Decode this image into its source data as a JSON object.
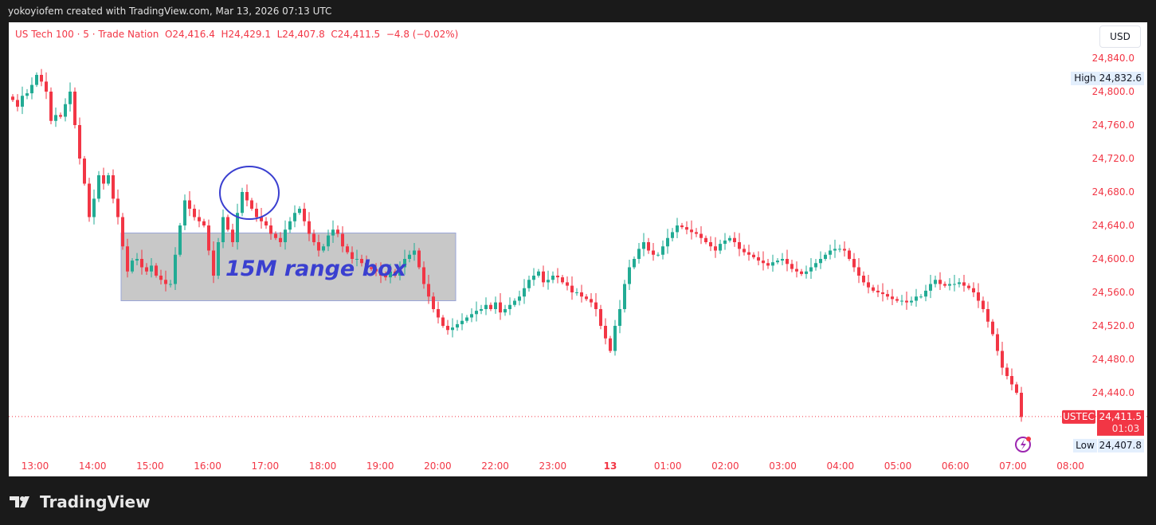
{
  "header": {
    "caption": "yokoyiofem created with TradingView.com, Mar 13, 2026 07:13 UTC"
  },
  "legend": {
    "symbol": "US Tech 100 · 5 · Trade Nation",
    "open": "O24,416.4",
    "high": "H24,429.1",
    "low": "L24,407.8",
    "close": "C24,411.5",
    "change": "−4.8 (−0.02%)"
  },
  "currency": "USD",
  "markers": {
    "high_label": "High",
    "high_value": "24,832.6",
    "low_label": "Low",
    "low_value": "24,407.8",
    "ticker": "USTEC",
    "last_price": "24,411.5",
    "countdown": "01:03"
  },
  "annotation": {
    "text": "15M range box",
    "box_top": 24631,
    "box_bottom": 24550,
    "box_start_index": 23,
    "box_end_index": 93
  },
  "footer": {
    "logo": "TradingView"
  },
  "colors": {
    "up": "#22ab94",
    "down": "#f23645",
    "axis_text": "#f23645",
    "annotation": "#3a3fd0",
    "box": "#c8c8c8"
  },
  "chart_data": {
    "type": "candlestick",
    "interval": "5",
    "y_ticks": [
      "24,440.0",
      "24,480.0",
      "24,520.0",
      "24,560.0",
      "24,600.0",
      "24,640.0",
      "24,680.0",
      "24,720.0",
      "24,760.0",
      "24,800.0",
      "24,840.0"
    ],
    "ylim": [
      24400,
      24850
    ],
    "x_ticks": [
      "13:00",
      "14:00",
      "15:00",
      "16:00",
      "17:00",
      "18:00",
      "19:00",
      "20:00",
      "22:00",
      "23:00",
      "13",
      "01:00",
      "02:00",
      "03:00",
      "04:00",
      "05:00",
      "06:00",
      "07:00",
      "08:00"
    ],
    "closes": [
      24790,
      24782,
      24795,
      24798,
      24808,
      24820,
      24812,
      24800,
      24765,
      24772,
      24770,
      24785,
      24800,
      24760,
      24720,
      24690,
      24650,
      24672,
      24700,
      24690,
      24700,
      24672,
      24650,
      24615,
      24585,
      24598,
      24600,
      24590,
      24585,
      24592,
      24580,
      24575,
      24570,
      24570,
      24605,
      24640,
      24670,
      24660,
      24650,
      24645,
      24640,
      24610,
      24580,
      24620,
      24650,
      24635,
      24620,
      24655,
      24680,
      24670,
      24660,
      24650,
      24645,
      24640,
      24630,
      24625,
      24620,
      24635,
      24645,
      24655,
      24660,
      24645,
      24630,
      24620,
      24610,
      24615,
      24628,
      24635,
      24630,
      24615,
      24608,
      24600,
      24600,
      24595,
      24590,
      24588,
      24585,
      24580,
      24578,
      24585,
      24580,
      24590,
      24600,
      24605,
      24610,
      24590,
      24570,
      24555,
      24540,
      24530,
      24520,
      24515,
      24518,
      24522,
      24526,
      24530,
      24534,
      24538,
      24540,
      24545,
      24540,
      24548,
      24536,
      24540,
      24545,
      24550,
      24555,
      24565,
      24575,
      24580,
      24585,
      24572,
      24575,
      24580,
      24578,
      24572,
      24568,
      24560,
      24560,
      24555,
      24552,
      24548,
      24540,
      24520,
      24505,
      24490,
      24520,
      24540,
      24570,
      24590,
      24600,
      24612,
      24620,
      24610,
      24605,
      24605,
      24615,
      24625,
      24632,
      24640,
      24638,
      24635,
      24632,
      24630,
      24625,
      24620,
      24615,
      24610,
      24618,
      24622,
      24625,
      24620,
      24612,
      24608,
      24605,
      24602,
      24598,
      24595,
      24592,
      24596,
      24598,
      24600,
      24594,
      24588,
      24585,
      24582,
      24585,
      24590,
      24595,
      24600,
      24605,
      24610,
      24612,
      24612,
      24610,
      24600,
      24590,
      24580,
      24572,
      24566,
      24562,
      24560,
      24558,
      24555,
      24552,
      24550,
      24550,
      24548,
      24550,
      24555,
      24555,
      24562,
      24570,
      24575,
      24570,
      24568,
      24570,
      24570,
      24572,
      24568,
      24565,
      24560,
      24550,
      24540,
      24525,
      24510,
      24490,
      24470,
      24460,
      24450,
      24440,
      24411
    ]
  }
}
